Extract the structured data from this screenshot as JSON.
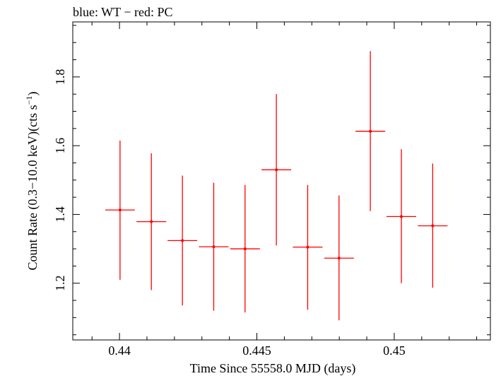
{
  "chart_data": {
    "type": "scatter",
    "title": "blue: WT − red: PC",
    "xlabel": "Time Since 55558.0 MJD (days)",
    "ylabel_main": "Count Rate (0.3−10.0 keV)(cts s",
    "ylabel_sup": "−1",
    "ylabel_close": ")",
    "xlim": [
      0.4383,
      0.4535
    ],
    "ylim": [
      1.035,
      1.96
    ],
    "xticks": [
      0.44,
      0.445,
      0.45
    ],
    "xtick_labels": [
      "0.44",
      "0.445",
      "0.45"
    ],
    "yticks": [
      1.2,
      1.4,
      1.6,
      1.8
    ],
    "ytick_labels": [
      "1.2",
      "1.4",
      "1.6",
      "1.8"
    ],
    "series": [
      {
        "color": "#ff0000",
        "points": [
          {
            "x": 0.44002,
            "xerr": 0.00054,
            "y": 1.413,
            "ylo": 1.21,
            "yhi": 1.615
          },
          {
            "x": 0.44116,
            "xerr": 0.00054,
            "y": 1.379,
            "ylo": 1.18,
            "yhi": 1.578
          },
          {
            "x": 0.44229,
            "xerr": 0.00054,
            "y": 1.324,
            "ylo": 1.135,
            "yhi": 1.513
          },
          {
            "x": 0.44343,
            "xerr": 0.00054,
            "y": 1.306,
            "ylo": 1.12,
            "yhi": 1.492
          },
          {
            "x": 0.44457,
            "xerr": 0.00054,
            "y": 1.3,
            "ylo": 1.115,
            "yhi": 1.486
          },
          {
            "x": 0.44571,
            "xerr": 0.00054,
            "y": 1.53,
            "ylo": 1.31,
            "yhi": 1.75
          },
          {
            "x": 0.44685,
            "xerr": 0.00054,
            "y": 1.305,
            "ylo": 1.123,
            "yhi": 1.486
          },
          {
            "x": 0.44799,
            "xerr": 0.00054,
            "y": 1.273,
            "ylo": 1.092,
            "yhi": 1.455
          },
          {
            "x": 0.44913,
            "xerr": 0.00054,
            "y": 1.642,
            "ylo": 1.41,
            "yhi": 1.875
          },
          {
            "x": 0.45026,
            "xerr": 0.00054,
            "y": 1.394,
            "ylo": 1.2,
            "yhi": 1.59
          },
          {
            "x": 0.4514,
            "xerr": 0.00054,
            "y": 1.367,
            "ylo": 1.187,
            "yhi": 1.548
          }
        ]
      }
    ]
  }
}
